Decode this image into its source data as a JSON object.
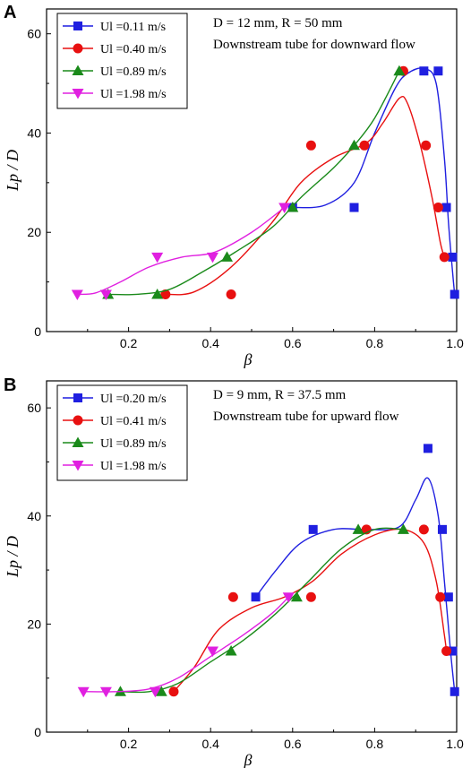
{
  "chart_data": [
    {
      "panel": "A",
      "type": "scatter",
      "xlabel": "β",
      "ylabel": "Lp / D",
      "xlim": [
        0.0,
        1.0
      ],
      "ylim": [
        0,
        65
      ],
      "xticks": [
        "0.2",
        "0.4",
        "0.6",
        "0.8",
        "1.0"
      ],
      "yticks": [
        "0",
        "20",
        "40",
        "60"
      ],
      "annotation": [
        "D = 12 mm, R = 50 mm",
        "Downstream tube for downward flow"
      ],
      "series": [
        {
          "name": "Ul =0.11 m/s",
          "color": "#1f1fe0",
          "marker": "square",
          "points": [
            [
              0.6,
              25
            ],
            [
              0.75,
              25
            ],
            [
              0.92,
              52.5
            ],
            [
              0.955,
              52.5
            ],
            [
              0.975,
              25
            ],
            [
              0.99,
              15
            ],
            [
              0.995,
              7.5
            ]
          ],
          "curve": [
            [
              0.6,
              25
            ],
            [
              0.68,
              25.5
            ],
            [
              0.75,
              30
            ],
            [
              0.8,
              40
            ],
            [
              0.85,
              49
            ],
            [
              0.88,
              52
            ],
            [
              0.92,
              53
            ],
            [
              0.95,
              50
            ],
            [
              0.97,
              35
            ],
            [
              0.98,
              22
            ],
            [
              0.99,
              12
            ],
            [
              0.995,
              7.5
            ]
          ]
        },
        {
          "name": "Ul =0.40 m/s",
          "color": "#e81010",
          "marker": "circle",
          "points": [
            [
              0.29,
              7.5
            ],
            [
              0.45,
              7.5
            ],
            [
              0.645,
              37.5
            ],
            [
              0.775,
              37.5
            ],
            [
              0.87,
              52.5
            ],
            [
              0.925,
              37.5
            ],
            [
              0.955,
              25
            ],
            [
              0.97,
              15
            ]
          ],
          "curve": [
            [
              0.29,
              7.5
            ],
            [
              0.36,
              8
            ],
            [
              0.45,
              13
            ],
            [
              0.55,
              22
            ],
            [
              0.62,
              30
            ],
            [
              0.7,
              35
            ],
            [
              0.78,
              38
            ],
            [
              0.82,
              42
            ],
            [
              0.86,
              47
            ],
            [
              0.88,
              46
            ],
            [
              0.91,
              38
            ],
            [
              0.94,
              27
            ],
            [
              0.96,
              18
            ],
            [
              0.97,
              15
            ]
          ]
        },
        {
          "name": "Ul =0.89 m/s",
          "color": "#1a8a1a",
          "marker": "triangle-up",
          "points": [
            [
              0.15,
              7.5
            ],
            [
              0.27,
              7.5
            ],
            [
              0.44,
              15
            ],
            [
              0.6,
              25
            ],
            [
              0.75,
              37.5
            ],
            [
              0.86,
              52.5
            ]
          ],
          "curve": [
            [
              0.15,
              7.5
            ],
            [
              0.22,
              7.5
            ],
            [
              0.3,
              8.5
            ],
            [
              0.38,
              12
            ],
            [
              0.46,
              16
            ],
            [
              0.55,
              21
            ],
            [
              0.62,
              27
            ],
            [
              0.7,
              33
            ],
            [
              0.75,
              37.5
            ],
            [
              0.8,
              43
            ],
            [
              0.86,
              52.5
            ]
          ]
        },
        {
          "name": "Ul =1.98 m/s",
          "color": "#e020e0",
          "marker": "triangle-down",
          "points": [
            [
              0.075,
              7.5
            ],
            [
              0.145,
              7.5
            ],
            [
              0.27,
              15
            ],
            [
              0.405,
              15
            ],
            [
              0.58,
              25
            ]
          ],
          "curve": [
            [
              0.075,
              7.5
            ],
            [
              0.12,
              7.8
            ],
            [
              0.18,
              10
            ],
            [
              0.25,
              13
            ],
            [
              0.33,
              15
            ],
            [
              0.41,
              16
            ],
            [
              0.5,
              20
            ],
            [
              0.58,
              25
            ]
          ]
        }
      ]
    },
    {
      "panel": "B",
      "type": "scatter",
      "xlabel": "β",
      "ylabel": "Lp / D",
      "xlim": [
        0.0,
        1.0
      ],
      "ylim": [
        0,
        65
      ],
      "xticks": [
        "0.2",
        "0.4",
        "0.6",
        "0.8",
        "1.0"
      ],
      "yticks": [
        "0",
        "20",
        "40",
        "60"
      ],
      "annotation": [
        "D = 9 mm, R = 37.5 mm",
        "Downstream tube for upward flow"
      ],
      "series": [
        {
          "name": "Ul =0.20 m/s",
          "color": "#1f1fe0",
          "marker": "square",
          "points": [
            [
              0.51,
              25
            ],
            [
              0.65,
              37.5
            ],
            [
              0.93,
              52.5
            ],
            [
              0.965,
              37.5
            ],
            [
              0.98,
              25
            ],
            [
              0.99,
              15
            ],
            [
              0.995,
              7.5
            ]
          ],
          "curve": [
            [
              0.51,
              25
            ],
            [
              0.56,
              30
            ],
            [
              0.62,
              35
            ],
            [
              0.7,
              37.5
            ],
            [
              0.78,
              37.5
            ],
            [
              0.86,
              38
            ],
            [
              0.9,
              43
            ],
            [
              0.93,
              47
            ],
            [
              0.955,
              40
            ],
            [
              0.97,
              28
            ],
            [
              0.985,
              15
            ],
            [
              0.995,
              7.5
            ]
          ]
        },
        {
          "name": "Ul =0.41 m/s",
          "color": "#e81010",
          "marker": "circle",
          "points": [
            [
              0.31,
              7.5
            ],
            [
              0.455,
              25
            ],
            [
              0.645,
              25
            ],
            [
              0.78,
              37.5
            ],
            [
              0.92,
              37.5
            ],
            [
              0.96,
              25
            ],
            [
              0.975,
              15
            ]
          ],
          "curve": [
            [
              0.31,
              7.5
            ],
            [
              0.36,
              12
            ],
            [
              0.42,
              19
            ],
            [
              0.5,
              23
            ],
            [
              0.58,
              25
            ],
            [
              0.65,
              28
            ],
            [
              0.72,
              33
            ],
            [
              0.8,
              36.5
            ],
            [
              0.87,
              37.5
            ],
            [
              0.92,
              35
            ],
            [
              0.95,
              28
            ],
            [
              0.97,
              18
            ],
            [
              0.975,
              15
            ]
          ]
        },
        {
          "name": "Ul =0.89 m/s",
          "color": "#1a8a1a",
          "marker": "triangle-up",
          "points": [
            [
              0.18,
              7.5
            ],
            [
              0.28,
              7.5
            ],
            [
              0.45,
              15
            ],
            [
              0.61,
              25
            ],
            [
              0.76,
              37.5
            ],
            [
              0.87,
              37.5
            ]
          ],
          "curve": [
            [
              0.18,
              7.5
            ],
            [
              0.25,
              7.5
            ],
            [
              0.32,
              9
            ],
            [
              0.4,
              13
            ],
            [
              0.48,
              17
            ],
            [
              0.56,
              22
            ],
            [
              0.64,
              28
            ],
            [
              0.72,
              34
            ],
            [
              0.8,
              37.5
            ],
            [
              0.87,
              37.5
            ]
          ]
        },
        {
          "name": "Ul =1.98 m/s",
          "color": "#e020e0",
          "marker": "triangle-down",
          "points": [
            [
              0.09,
              7.5
            ],
            [
              0.145,
              7.5
            ],
            [
              0.265,
              7.5
            ],
            [
              0.405,
              15
            ],
            [
              0.59,
              25
            ]
          ],
          "curve": [
            [
              0.09,
              7.5
            ],
            [
              0.17,
              7.5
            ],
            [
              0.25,
              8
            ],
            [
              0.32,
              10
            ],
            [
              0.4,
              14
            ],
            [
              0.48,
              18
            ],
            [
              0.55,
              22
            ],
            [
              0.59,
              25
            ]
          ]
        }
      ]
    }
  ]
}
